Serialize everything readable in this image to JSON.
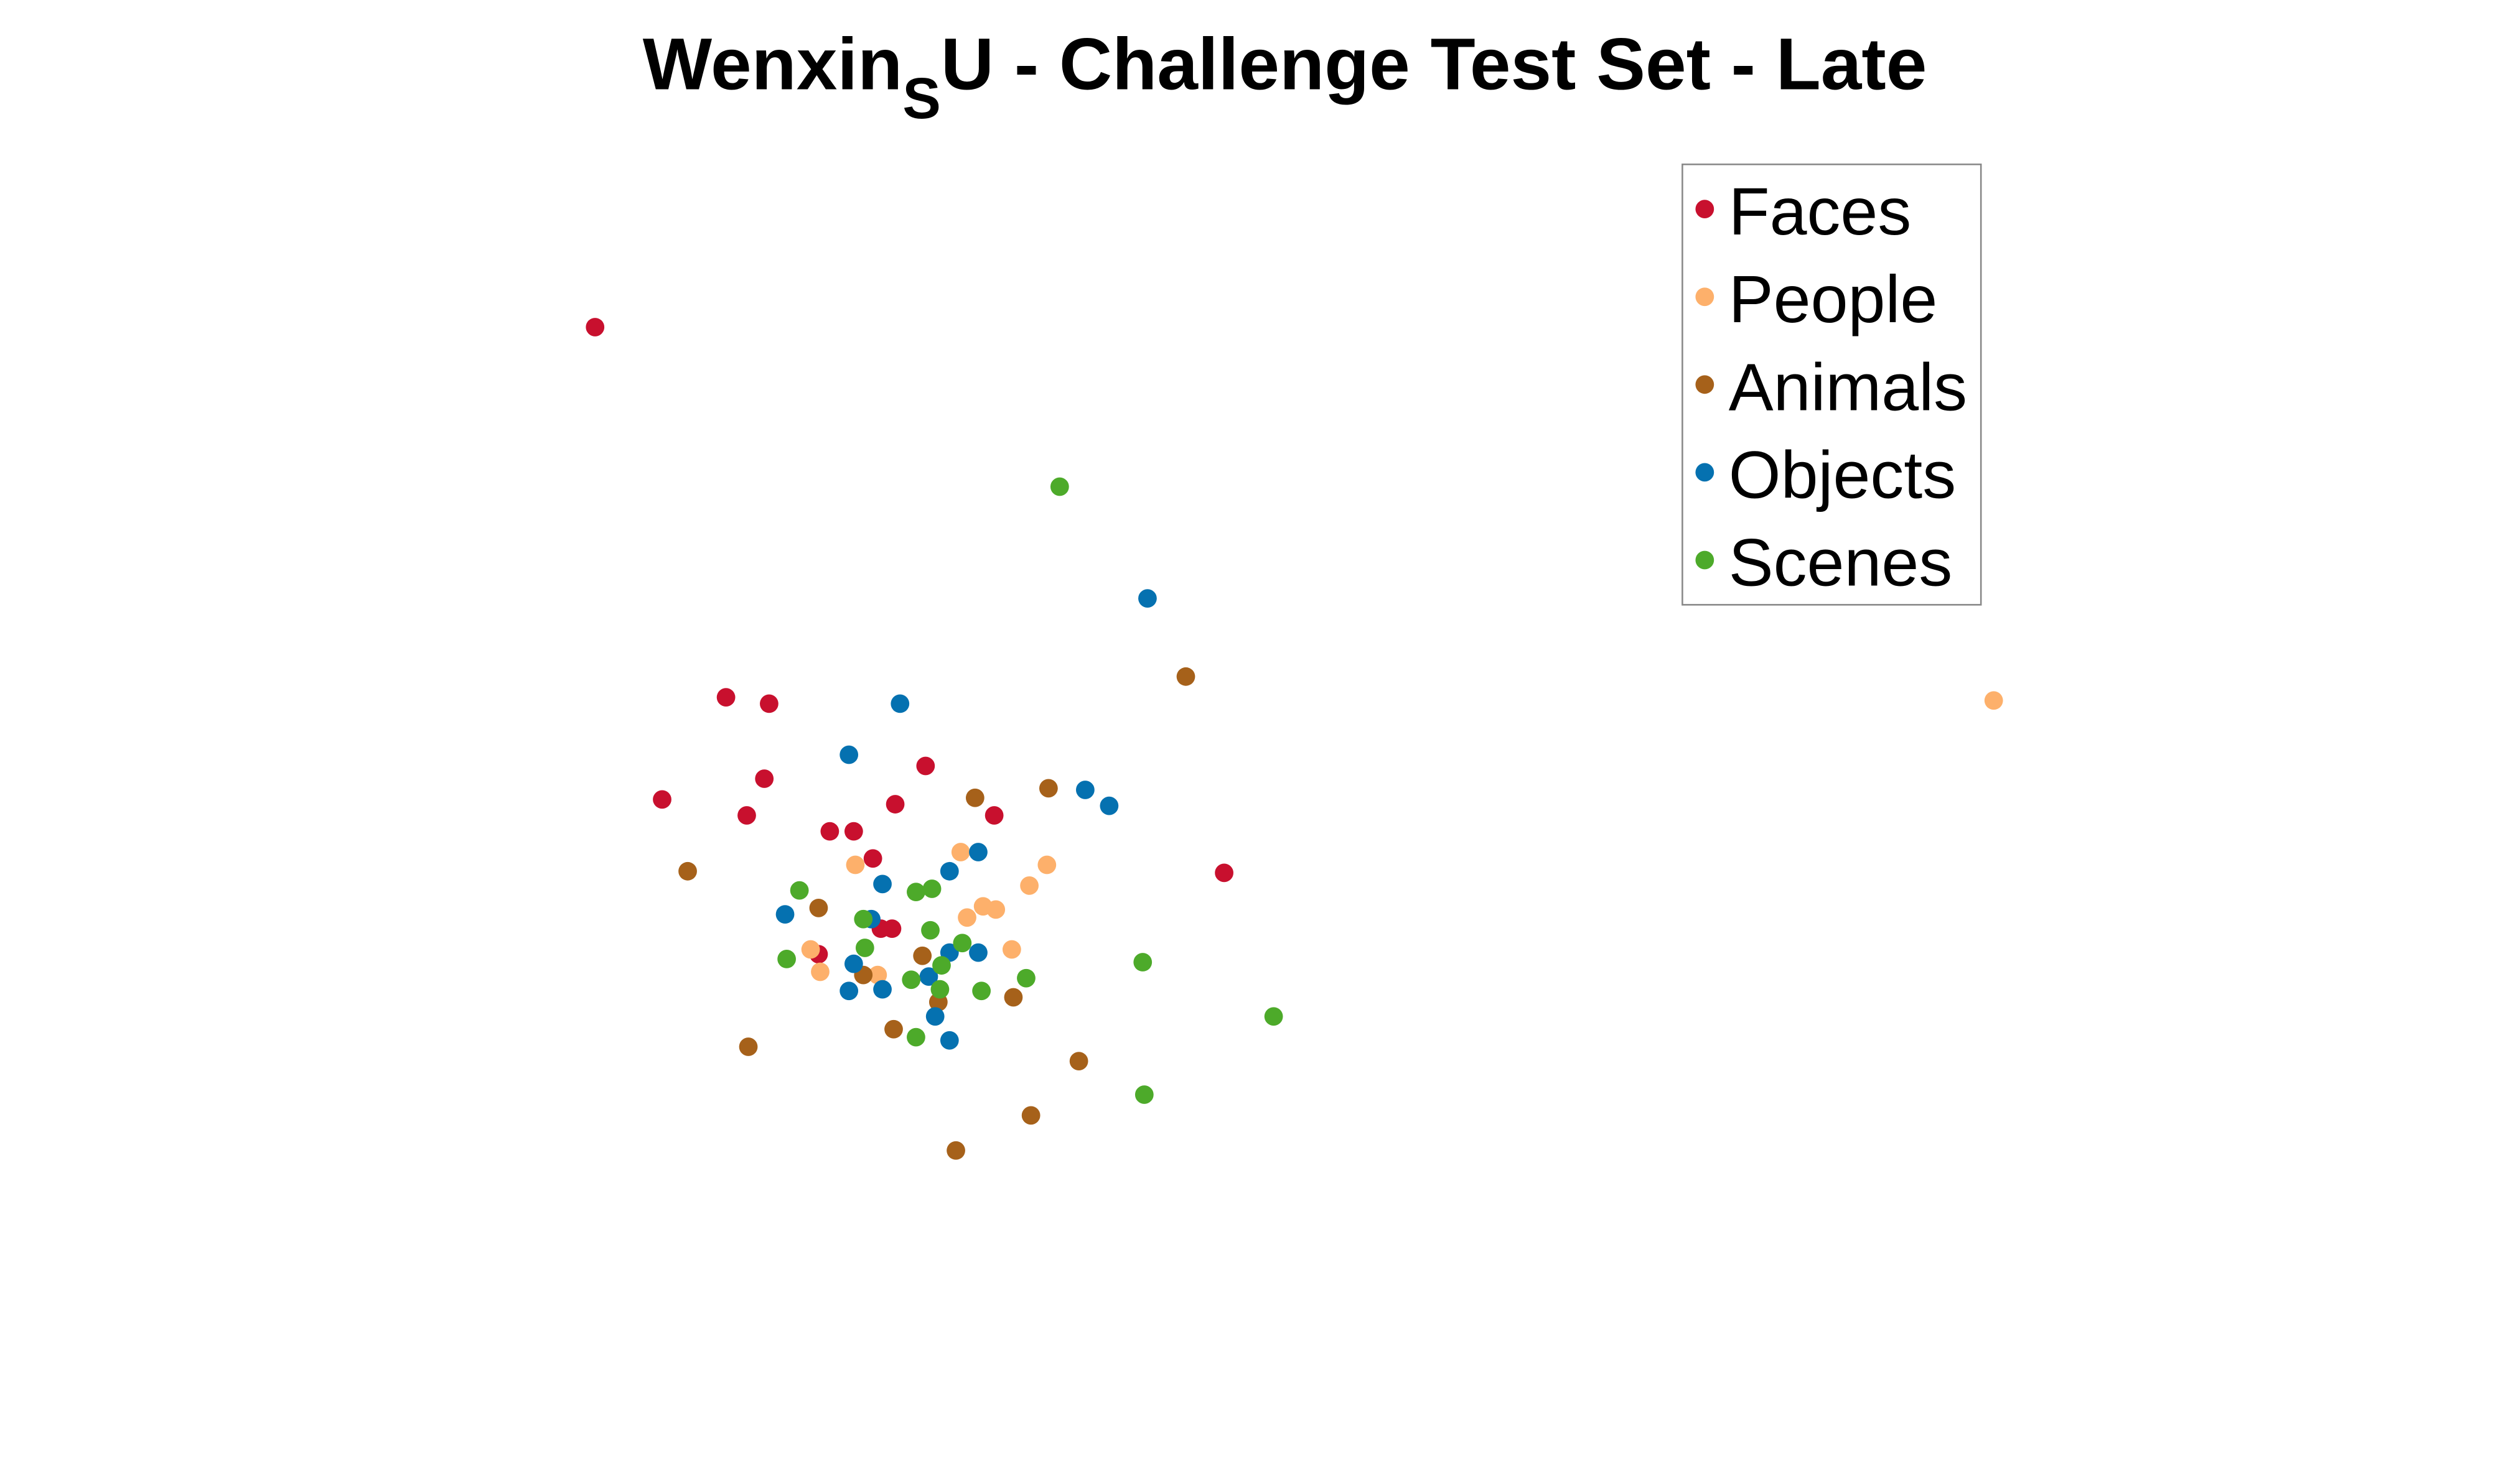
{
  "chart_data": {
    "type": "scatter",
    "title": {
      "main": "Wenxin",
      "subscript": "S",
      "rest": "U - Challenge Test Set - Late"
    },
    "xlabel": "",
    "ylabel": "",
    "axes_visible": false,
    "grid": false,
    "legend_position": "top-right",
    "series": [
      {
        "name": "Faces",
        "color": "#c8102e",
        "points": [
          [
            372,
            205
          ],
          [
            454,
            437
          ],
          [
            481,
            441
          ],
          [
            478,
            488
          ],
          [
            414,
            501
          ],
          [
            467,
            511
          ],
          [
            579,
            480
          ],
          [
            560,
            504
          ],
          [
            622,
            511
          ],
          [
            519,
            521
          ],
          [
            534,
            521
          ],
          [
            546,
            538
          ],
          [
            766,
            547
          ],
          [
            551,
            582
          ],
          [
            558,
            582
          ],
          [
            512,
            598
          ]
        ]
      },
      {
        "name": "People",
        "color": "#fdb06b",
        "points": [
          [
            1248,
            439
          ],
          [
            601,
            534
          ],
          [
            535,
            542
          ],
          [
            655,
            542
          ],
          [
            644,
            555
          ],
          [
            615,
            568
          ],
          [
            623,
            570
          ],
          [
            605,
            575
          ],
          [
            507,
            595
          ],
          [
            633,
            595
          ],
          [
            513,
            609
          ],
          [
            549,
            611
          ]
        ]
      },
      {
        "name": "Animals",
        "color": "#a6611a",
        "points": [
          [
            742,
            424
          ],
          [
            656,
            494
          ],
          [
            610,
            500
          ],
          [
            430,
            546
          ],
          [
            512,
            569
          ],
          [
            577,
            599
          ],
          [
            540,
            611
          ],
          [
            587,
            628
          ],
          [
            634,
            625
          ],
          [
            559,
            645
          ],
          [
            468,
            656
          ],
          [
            675,
            665
          ],
          [
            645,
            699
          ],
          [
            598,
            721
          ]
        ]
      },
      {
        "name": "Objects",
        "color": "#0571b0",
        "points": [
          [
            718,
            375
          ],
          [
            563,
            441
          ],
          [
            531,
            473
          ],
          [
            679,
            495
          ],
          [
            694,
            505
          ],
          [
            612,
            534
          ],
          [
            594,
            546
          ],
          [
            552,
            554
          ],
          [
            491,
            573
          ],
          [
            545,
            576
          ],
          [
            594,
            597
          ],
          [
            612,
            597
          ],
          [
            534,
            604
          ],
          [
            581,
            612
          ],
          [
            531,
            621
          ],
          [
            552,
            620
          ],
          [
            585,
            637
          ],
          [
            594,
            652
          ]
        ]
      },
      {
        "name": "Scenes",
        "color": "#4daa2a",
        "points": [
          [
            663,
            305
          ],
          [
            500,
            558
          ],
          [
            573,
            559
          ],
          [
            583,
            557
          ],
          [
            540,
            576
          ],
          [
            582,
            583
          ],
          [
            602,
            591
          ],
          [
            541,
            594
          ],
          [
            492,
            601
          ],
          [
            589,
            605
          ],
          [
            715,
            603
          ],
          [
            570,
            614
          ],
          [
            642,
            613
          ],
          [
            588,
            620
          ],
          [
            614,
            621
          ],
          [
            797,
            637
          ],
          [
            573,
            650
          ],
          [
            716,
            686
          ]
        ]
      }
    ]
  }
}
